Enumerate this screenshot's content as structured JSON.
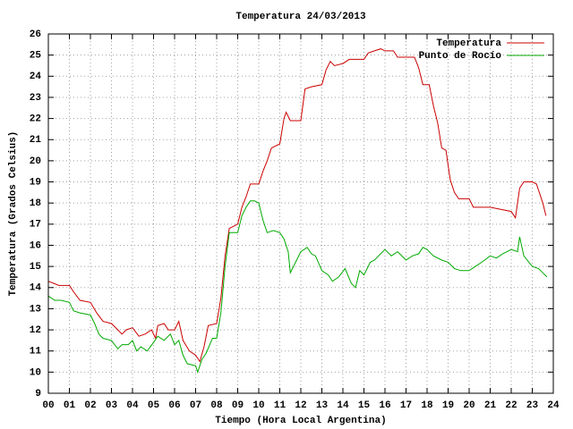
{
  "chart_data": {
    "type": "line",
    "title": "Temperatura 24/03/2013",
    "x_label": "Tiempo (Hora Local Argentina)",
    "y_label": "Temperatura (Grados Celsius)",
    "xlim": [
      0,
      24
    ],
    "ylim": [
      9,
      26
    ],
    "xticks": [
      {
        "value": 0,
        "label": "00"
      },
      {
        "value": 1,
        "label": "01"
      },
      {
        "value": 2,
        "label": "02"
      },
      {
        "value": 3,
        "label": "03"
      },
      {
        "value": 4,
        "label": "04"
      },
      {
        "value": 5,
        "label": "05"
      },
      {
        "value": 6,
        "label": "06"
      },
      {
        "value": 7,
        "label": "07"
      },
      {
        "value": 8,
        "label": "08"
      },
      {
        "value": 9,
        "label": "09"
      },
      10,
      11,
      12,
      13,
      14,
      15,
      16,
      17,
      18,
      19,
      20,
      21,
      22,
      23,
      24
    ],
    "yticks": [
      9,
      10,
      11,
      12,
      13,
      14,
      15,
      16,
      17,
      18,
      19,
      20,
      21,
      22,
      23,
      24,
      25,
      26
    ],
    "grid": true,
    "legend": "top-right",
    "series": [
      {
        "name": "Temperatura",
        "color": "#cc0000",
        "x": [
          0,
          0.25,
          0.5,
          1,
          1.2,
          1.5,
          2,
          2.3,
          2.6,
          3,
          3.3,
          3.5,
          3.7,
          4,
          4.3,
          4.6,
          4.9,
          5.1,
          5.2,
          5.5,
          5.7,
          6,
          6.2,
          6.4,
          6.7,
          7,
          7.2,
          7.4,
          7.6,
          8,
          8.2,
          8.4,
          8.6,
          9,
          9.2,
          9.4,
          9.6,
          10,
          10.2,
          10.4,
          10.6,
          11,
          11.2,
          11.3,
          11.5,
          12,
          12.2,
          12.5,
          13,
          13.2,
          13.4,
          13.6,
          14,
          14.3,
          14.6,
          15,
          15.2,
          15.5,
          15.8,
          16,
          16.4,
          16.6,
          17,
          17.4,
          17.6,
          17.8,
          18.1,
          18.3,
          18.5,
          18.7,
          18.9,
          19.1,
          19.3,
          19.5,
          20,
          20.2,
          21,
          21.5,
          22,
          22.2,
          22.4,
          22.6,
          23,
          23.2,
          23.5,
          23.65
        ],
        "values": [
          14.3,
          14.2,
          14.1,
          14.1,
          13.8,
          13.4,
          13.3,
          12.8,
          12.4,
          12.3,
          12.0,
          11.8,
          12.0,
          12.1,
          11.7,
          11.8,
          12.0,
          11.6,
          12.2,
          12.3,
          12.0,
          12.0,
          12.4,
          11.5,
          11.0,
          10.8,
          10.5,
          11.2,
          12.2,
          12.3,
          13.5,
          15.5,
          16.8,
          17.0,
          17.8,
          18.3,
          18.9,
          18.9,
          19.5,
          20.0,
          20.6,
          20.8,
          22.0,
          22.3,
          21.9,
          21.9,
          23.4,
          23.5,
          23.6,
          24.3,
          24.7,
          24.5,
          24.6,
          24.8,
          24.8,
          24.8,
          25.1,
          25.2,
          25.3,
          25.2,
          25.2,
          24.9,
          24.9,
          24.9,
          24.4,
          23.6,
          23.6,
          22.6,
          21.8,
          20.6,
          20.5,
          19.1,
          18.5,
          18.2,
          18.2,
          17.8,
          17.8,
          17.7,
          17.6,
          17.3,
          18.7,
          19.0,
          19.0,
          18.9,
          18.0,
          17.4
        ]
      },
      {
        "name": "Punto de Rocío",
        "color": "#00aa00",
        "x": [
          0,
          0.3,
          0.6,
          1,
          1.2,
          1.5,
          2,
          2.2,
          2.4,
          2.6,
          3,
          3.3,
          3.5,
          3.8,
          4,
          4.2,
          4.4,
          4.7,
          5,
          5.2,
          5.5,
          5.8,
          6,
          6.2,
          6.4,
          6.6,
          7,
          7.1,
          7.3,
          7.5,
          7.8,
          8,
          8.2,
          8.4,
          8.6,
          9,
          9.2,
          9.4,
          9.6,
          9.8,
          10,
          10.2,
          10.4,
          10.7,
          11,
          11.2,
          11.4,
          11.5,
          12,
          12.3,
          12.5,
          12.7,
          13,
          13.3,
          13.5,
          13.8,
          14.1,
          14.4,
          14.6,
          14.8,
          15,
          15.3,
          15.5,
          15.8,
          16,
          16.3,
          16.6,
          17,
          17.3,
          17.6,
          17.8,
          18,
          18.3,
          18.7,
          19,
          19.3,
          19.6,
          20,
          20.3,
          20.6,
          21,
          21.3,
          21.6,
          22,
          22.3,
          22.4,
          22.6,
          23,
          23.3,
          23.5,
          23.7
        ],
        "values": [
          13.6,
          13.4,
          13.4,
          13.3,
          12.9,
          12.8,
          12.7,
          12.3,
          11.8,
          11.6,
          11.5,
          11.1,
          11.3,
          11.3,
          11.5,
          11.0,
          11.2,
          11.0,
          11.4,
          11.7,
          11.5,
          11.8,
          11.3,
          11.5,
          10.8,
          10.4,
          10.3,
          10.0,
          10.6,
          10.9,
          11.6,
          11.6,
          12.8,
          15.0,
          16.6,
          16.6,
          17.4,
          17.8,
          18.1,
          18.1,
          18.0,
          17.2,
          16.6,
          16.7,
          16.6,
          16.3,
          15.7,
          14.7,
          15.7,
          15.9,
          15.6,
          15.5,
          14.8,
          14.6,
          14.3,
          14.5,
          14.9,
          14.2,
          14.0,
          14.8,
          14.6,
          15.2,
          15.3,
          15.6,
          15.8,
          15.5,
          15.7,
          15.3,
          15.5,
          15.6,
          15.9,
          15.8,
          15.5,
          15.3,
          15.2,
          14.9,
          14.8,
          14.8,
          15.0,
          15.2,
          15.5,
          15.4,
          15.6,
          15.8,
          15.7,
          16.4,
          15.5,
          15.0,
          14.9,
          14.7,
          14.5
        ]
      }
    ]
  }
}
